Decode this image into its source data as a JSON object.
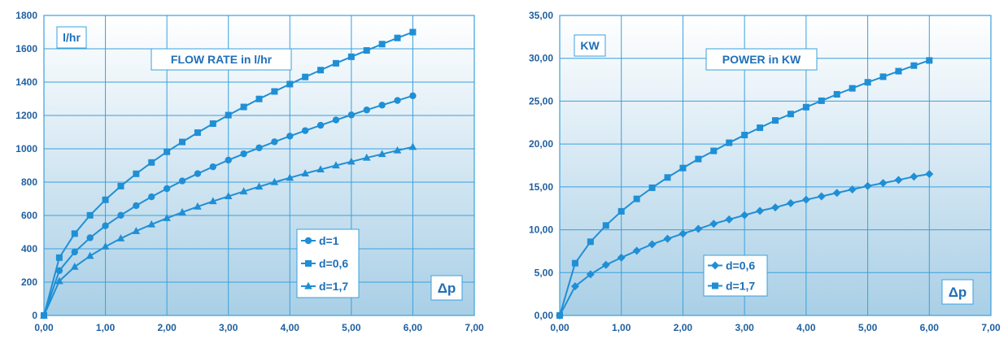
{
  "colors": {
    "accent": "#1f8fd6",
    "text": "#1f6fb8",
    "grid": "#3aa0dc",
    "bg_top": "#ffffff",
    "bg_bottom": "#a9cfe6"
  },
  "chart_data": [
    {
      "type": "line",
      "title": "FLOW RATE in l/hr",
      "ylabel": "l/hr",
      "xlabel": "Δp",
      "xlim": [
        0,
        7
      ],
      "ylim": [
        0,
        1800
      ],
      "x_ticks": [
        "0,00",
        "1,00",
        "2,00",
        "3,00",
        "4,00",
        "5,00",
        "6,00",
        "7,00"
      ],
      "y_ticks": [
        "0",
        "200",
        "400",
        "600",
        "800",
        "1000",
        "1200",
        "1400",
        "1600",
        "1800"
      ],
      "grid": true,
      "legend_position": "center-right",
      "x": [
        0,
        0.25,
        0.5,
        0.75,
        1,
        1.25,
        1.5,
        1.75,
        2,
        2.25,
        2.5,
        2.75,
        3,
        3.25,
        3.5,
        3.75,
        4,
        4.25,
        4.5,
        4.75,
        5,
        5.25,
        5.5,
        5.75,
        6
      ],
      "series": [
        {
          "name": "d=1",
          "marker": "circle",
          "values": [
            0,
            269,
            381,
            466,
            538,
            601,
            659,
            712,
            761,
            807,
            851,
            892,
            932,
            970,
            1006,
            1042,
            1076,
            1109,
            1141,
            1173,
            1203,
            1233,
            1262,
            1290,
            1318
          ]
        },
        {
          "name": "d=0,6",
          "marker": "square",
          "values": [
            0,
            347,
            491,
            601,
            694,
            776,
            850,
            918,
            982,
            1041,
            1097,
            1151,
            1202,
            1251,
            1299,
            1344,
            1388,
            1431,
            1472,
            1513,
            1552,
            1590,
            1628,
            1665,
            1700
          ]
        },
        {
          "name": "d=1,7",
          "marker": "triangle",
          "values": [
            0,
            206,
            292,
            357,
            413,
            462,
            506,
            546,
            584,
            619,
            653,
            685,
            715,
            744,
            773,
            800,
            826,
            852,
            876,
            900,
            923,
            946,
            968,
            990,
            1011
          ]
        }
      ]
    },
    {
      "type": "line",
      "title": "POWER in KW",
      "ylabel": "KW",
      "xlabel": "Δp",
      "xlim": [
        0,
        7
      ],
      "ylim": [
        0,
        35
      ],
      "x_ticks": [
        "0,00",
        "1,00",
        "2,00",
        "3,00",
        "4,00",
        "5,00",
        "6,00",
        "7,00"
      ],
      "y_ticks": [
        "0,00",
        "5,00",
        "10,00",
        "15,00",
        "20,00",
        "25,00",
        "30,00",
        "35,00"
      ],
      "grid": true,
      "legend_position": "bottom-left",
      "x": [
        0,
        0.25,
        0.5,
        0.75,
        1,
        1.25,
        1.5,
        1.75,
        2,
        2.25,
        2.5,
        2.75,
        3,
        3.25,
        3.5,
        3.75,
        4,
        4.25,
        4.5,
        4.75,
        5,
        5.25,
        5.5,
        5.75,
        6
      ],
      "series": [
        {
          "name": "d=0,6",
          "marker": "diamond",
          "values": [
            0,
            3.4,
            4.8,
            5.9,
            6.75,
            7.55,
            8.3,
            8.95,
            9.55,
            10.1,
            10.7,
            11.2,
            11.7,
            12.2,
            12.6,
            13.1,
            13.5,
            13.9,
            14.3,
            14.7,
            15.1,
            15.45,
            15.8,
            16.2,
            16.5
          ]
        },
        {
          "name": "d=1,7",
          "marker": "square",
          "values": [
            0,
            6.1,
            8.6,
            10.5,
            12.15,
            13.6,
            14.9,
            16.1,
            17.2,
            18.25,
            19.2,
            20.15,
            21.05,
            21.9,
            22.75,
            23.5,
            24.3,
            25.05,
            25.8,
            26.5,
            27.2,
            27.85,
            28.5,
            29.15,
            29.75
          ]
        }
      ]
    }
  ]
}
